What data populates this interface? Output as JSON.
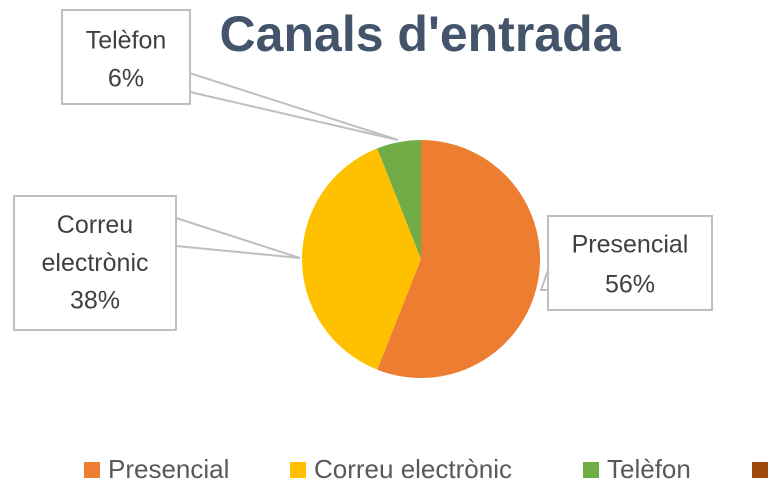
{
  "chart_data": {
    "type": "pie",
    "title": "Canals d'entrada",
    "categories": [
      "Presencial",
      "Correu electrònic",
      "Telèfon",
      null
    ],
    "values": [
      56,
      38,
      6,
      0
    ],
    "value_labels": [
      "56%",
      "38%",
      "6%",
      null
    ],
    "colors": [
      "#ed7d31",
      "#ffc000",
      "#70ad47",
      "#9e480e"
    ],
    "legend": "bottom"
  }
}
